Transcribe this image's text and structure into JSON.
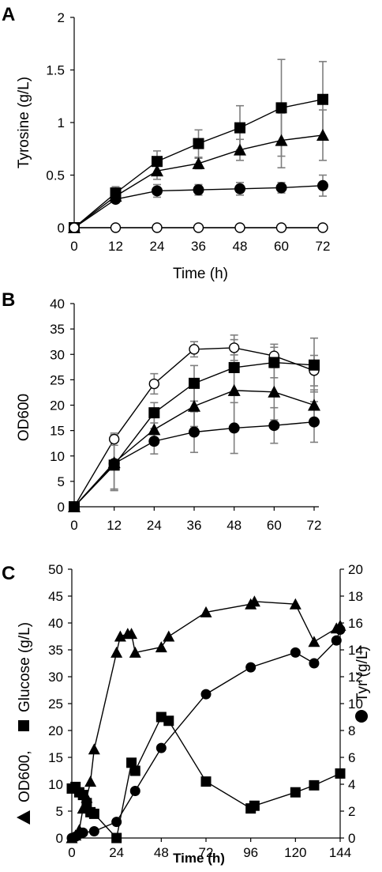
{
  "chart_data": [
    {
      "panel": "A",
      "type": "line",
      "ylabel": "Tyrosine (g/L)",
      "xlabel": "Time (h)",
      "xlim": [
        0,
        72
      ],
      "ylim": [
        0,
        2
      ],
      "xticks": [
        0,
        12,
        24,
        36,
        48,
        60,
        72
      ],
      "yticks": [
        0,
        0.5,
        1,
        1.5,
        2
      ],
      "ytick_labels": [
        "0",
        "0.5",
        "1",
        "1.5",
        "2"
      ],
      "series": [
        {
          "marker": "square",
          "x": [
            0,
            12,
            24,
            36,
            48,
            60,
            72
          ],
          "y": [
            0,
            0.33,
            0.63,
            0.8,
            0.95,
            1.14,
            1.22
          ],
          "err": [
            0,
            0.06,
            0.1,
            0.13,
            0.21,
            0.46,
            0.36
          ]
        },
        {
          "marker": "triangle",
          "x": [
            0,
            12,
            24,
            36,
            48,
            60,
            72
          ],
          "y": [
            0,
            0.3,
            0.54,
            0.61,
            0.74,
            0.83,
            0.88
          ],
          "err": [
            0,
            0.05,
            0.08,
            0.05,
            0.1,
            0.26,
            0.24
          ]
        },
        {
          "marker": "circle",
          "x": [
            0,
            12,
            24,
            36,
            48,
            60,
            72
          ],
          "y": [
            0,
            0.27,
            0.35,
            0.36,
            0.37,
            0.38,
            0.4
          ],
          "err": [
            0,
            0.03,
            0.06,
            0.05,
            0.06,
            0.05,
            0.1
          ]
        },
        {
          "marker": "open-circle",
          "x": [
            0,
            12,
            24,
            36,
            48,
            60,
            72
          ],
          "y": [
            0,
            0,
            0,
            0,
            0,
            0,
            0
          ],
          "err": [
            0,
            0,
            0,
            0,
            0,
            0,
            0
          ]
        }
      ]
    },
    {
      "panel": "B",
      "type": "line",
      "ylabel": "OD600",
      "xlabel": "",
      "xlim": [
        0,
        72
      ],
      "ylim": [
        0,
        40
      ],
      "xticks": [
        0,
        12,
        24,
        36,
        48,
        60,
        72
      ],
      "yticks": [
        0,
        5,
        10,
        15,
        20,
        25,
        30,
        35,
        40
      ],
      "ytick_labels": [
        "0",
        "5",
        "10",
        "15",
        "20",
        "25",
        "30",
        "35",
        "40"
      ],
      "series": [
        {
          "marker": "open-circle",
          "x": [
            0,
            12,
            24,
            36,
            48,
            60,
            72
          ],
          "y": [
            0,
            13.3,
            24.2,
            31.0,
            31.3,
            29.7,
            26.8
          ],
          "err": [
            0,
            1.2,
            2.0,
            1.5,
            2.5,
            2.3,
            3.0
          ]
        },
        {
          "marker": "square",
          "x": [
            0,
            12,
            24,
            36,
            48,
            60,
            72
          ],
          "y": [
            0,
            8.2,
            18.5,
            24.3,
            27.4,
            28.4,
            27.9
          ],
          "err": [
            0,
            5.0,
            2.0,
            3.5,
            5.5,
            3.0,
            5.3
          ]
        },
        {
          "marker": "triangle",
          "x": [
            0,
            12,
            24,
            36,
            48,
            60,
            72
          ],
          "y": [
            0,
            8.7,
            15.2,
            19.8,
            22.9,
            22.6,
            20.0
          ],
          "err": [
            0,
            5.5,
            3.0,
            4.0,
            7.0,
            5.5,
            3.0
          ]
        },
        {
          "marker": "circle",
          "x": [
            0,
            12,
            24,
            36,
            48,
            60,
            72
          ],
          "y": [
            0,
            8.5,
            12.9,
            14.7,
            15.5,
            16.0,
            16.7
          ],
          "err": [
            0,
            5.0,
            2.5,
            4.0,
            5.0,
            3.5,
            4.0
          ]
        }
      ]
    },
    {
      "panel": "C",
      "type": "line",
      "ylabel_left_marker1": "triangle",
      "ylabel_left_text1": "OD600,",
      "ylabel_left_marker2": "square",
      "ylabel_left_text2": "Glucose (g/L)",
      "ylabel_right_text": "Tyr (g/L)",
      "ylabel_right_marker": "circle",
      "xlabel": "Time (h)",
      "xlim": [
        0,
        144
      ],
      "ylim_left": [
        0,
        50
      ],
      "ylim_right": [
        0,
        20
      ],
      "xticks": [
        0,
        24,
        48,
        72,
        96,
        120,
        144
      ],
      "yticks_left": [
        0,
        5,
        10,
        15,
        20,
        25,
        30,
        35,
        40,
        45,
        50
      ],
      "ytick_labels_left": [
        "0",
        "5",
        "10",
        "15",
        "20",
        "25",
        "30",
        "35",
        "40",
        "45",
        "50"
      ],
      "yticks_right": [
        0,
        2,
        4,
        6,
        8,
        10,
        12,
        14,
        16,
        18,
        20
      ],
      "ytick_labels_right": [
        "0",
        "2",
        "4",
        "6",
        "8",
        "10",
        "12",
        "14",
        "16",
        "18",
        "20"
      ],
      "series": [
        {
          "marker": "triangle",
          "axis": "left",
          "x": [
            0,
            2,
            4,
            6,
            8,
            10,
            12,
            24,
            26,
            30,
            32,
            34,
            48,
            52,
            72,
            96,
            98,
            120,
            130,
            142,
            144
          ],
          "y": [
            0,
            0.5,
            1.5,
            5.5,
            7.5,
            10.5,
            16.5,
            34.5,
            37.5,
            38.0,
            38.0,
            34.5,
            35.5,
            37.5,
            42.0,
            43.5,
            44.0,
            43.5,
            36.5,
            39.0,
            39.5
          ]
        },
        {
          "marker": "square",
          "axis": "left",
          "x": [
            0,
            2,
            4,
            6,
            8,
            10,
            12,
            24,
            32,
            34,
            48,
            52,
            72,
            96,
            98,
            120,
            130,
            144
          ],
          "y": [
            9.2,
            9.5,
            8.5,
            8.0,
            6.5,
            4.8,
            4.5,
            0.0,
            14.0,
            12.5,
            22.5,
            21.8,
            10.5,
            5.5,
            6.0,
            8.5,
            9.8,
            12.0
          ]
        },
        {
          "marker": "circle",
          "axis": "right",
          "x": [
            0,
            2,
            4,
            6,
            12,
            24,
            34,
            48,
            72,
            96,
            120,
            130,
            142,
            144
          ],
          "y": [
            0,
            0.1,
            0.3,
            0.4,
            0.5,
            1.2,
            3.5,
            6.7,
            10.7,
            12.7,
            13.8,
            13.0,
            14.7,
            15.5
          ]
        }
      ]
    }
  ]
}
